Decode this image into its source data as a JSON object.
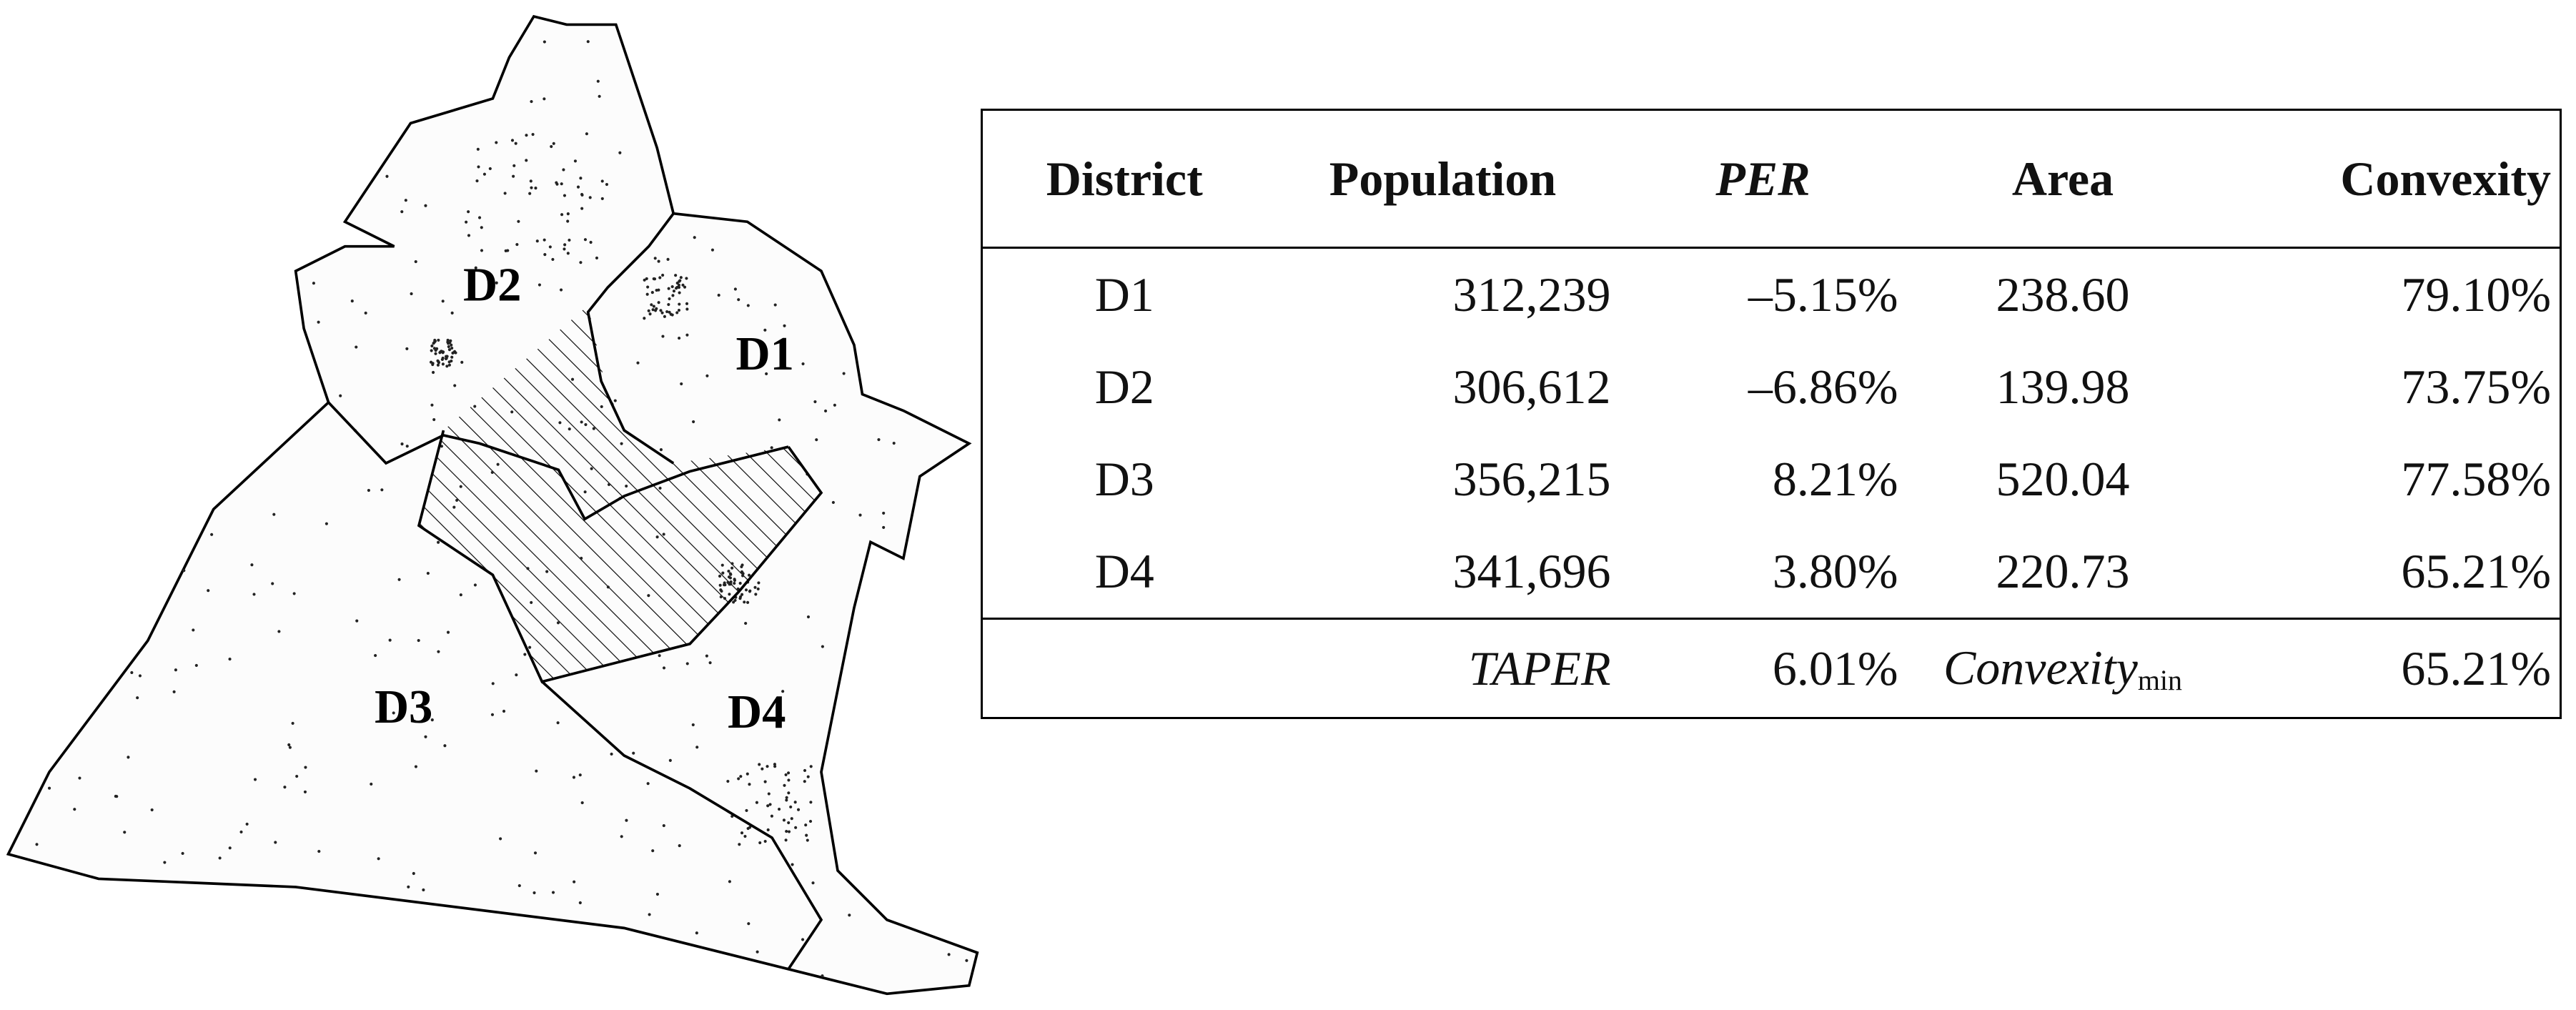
{
  "map": {
    "labels": [
      "D1",
      "D2",
      "D3",
      "D4"
    ]
  },
  "table": {
    "header": [
      "District",
      "Population",
      "PER",
      "Area",
      "Convexity"
    ],
    "rows": [
      [
        "D1",
        "312,239",
        "–5.15%",
        "238.60",
        "79.10%"
      ],
      [
        "D2",
        "306,612",
        "–6.86%",
        "139.98",
        "73.75%"
      ],
      [
        "D3",
        "356,215",
        "8.21%",
        "520.04",
        "77.58%"
      ],
      [
        "D4",
        "341,696",
        "3.80%",
        "220.73",
        "65.21%"
      ]
    ],
    "footer": {
      "taper_label": "TAPER",
      "taper_value": "6.01%",
      "convexity_label": "Convexity",
      "convexity_sub": "min",
      "convexity_value": "65.21%"
    }
  }
}
